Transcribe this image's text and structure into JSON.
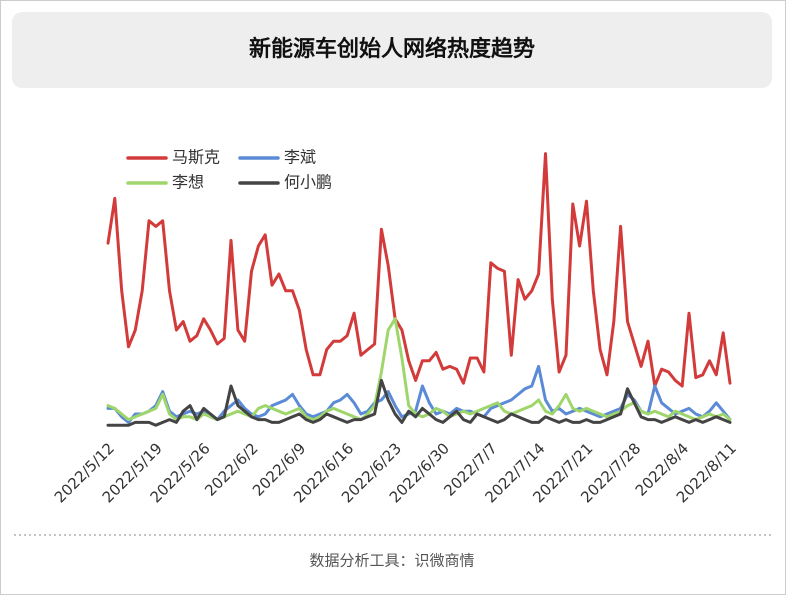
{
  "title": "新能源车创始人网络热度趋势",
  "footer": "数据分析工具：识微商情",
  "chart_data": {
    "type": "line",
    "categories": [
      "2022/5/12",
      null,
      null,
      null,
      null,
      null,
      null,
      "2022/5/19",
      null,
      null,
      null,
      null,
      null,
      null,
      "2022/5/26",
      null,
      null,
      null,
      null,
      null,
      null,
      "2022/6/2",
      null,
      null,
      null,
      null,
      null,
      null,
      "2022/6/9",
      null,
      null,
      null,
      null,
      null,
      null,
      "2022/6/16",
      null,
      null,
      null,
      null,
      null,
      null,
      "2022/6/23",
      null,
      null,
      null,
      null,
      null,
      null,
      "2022/6/30",
      null,
      null,
      null,
      null,
      null,
      null,
      "2022/7/7",
      null,
      null,
      null,
      null,
      null,
      null,
      "2022/7/14",
      null,
      null,
      null,
      null,
      null,
      null,
      "2022/7/21",
      null,
      null,
      null,
      null,
      null,
      null,
      "2022/7/28",
      null,
      null,
      null,
      null,
      null,
      null,
      "2022/8/4",
      null,
      null,
      null,
      null,
      null,
      null,
      "2022/8/11"
    ],
    "ylim": [
      0,
      100
    ],
    "series": [
      {
        "name": "马斯克",
        "color": "#d33b3b",
        "values": [
          66,
          82,
          49,
          29,
          35,
          49,
          74,
          72,
          74,
          49,
          35,
          38,
          31,
          33,
          39,
          35,
          30,
          32,
          67,
          35,
          31,
          56,
          65,
          69,
          51,
          55,
          49,
          49,
          42,
          28,
          19,
          19,
          28,
          31,
          31,
          33,
          41,
          26,
          28,
          30,
          71,
          58,
          39,
          35,
          24,
          17,
          24,
          24,
          27,
          21,
          22,
          21,
          16,
          25,
          25,
          20,
          59,
          57,
          56,
          26,
          53,
          46,
          49,
          55,
          98,
          46,
          20,
          26,
          80,
          65,
          81,
          49,
          28,
          19,
          38,
          72,
          38,
          30,
          22,
          31,
          15,
          21,
          20,
          17,
          15,
          41,
          18,
          19,
          24,
          19,
          34,
          16
        ]
      },
      {
        "name": "李斌",
        "color": "#5b8bd6",
        "values": [
          7,
          7,
          4,
          2,
          5,
          5,
          6,
          8,
          13,
          6,
          4,
          5,
          6,
          5,
          6,
          4,
          3,
          6,
          8,
          10,
          7,
          5,
          4,
          5,
          8,
          9,
          10,
          12,
          8,
          5,
          4,
          5,
          6,
          9,
          10,
          12,
          9,
          5,
          6,
          9,
          10,
          13,
          8,
          4,
          5,
          6,
          15,
          9,
          5,
          6,
          5,
          7,
          6,
          6,
          5,
          4,
          7,
          8,
          9,
          10,
          12,
          14,
          15,
          22,
          10,
          6,
          7,
          5,
          6,
          7,
          6,
          5,
          4,
          5,
          6,
          7,
          12,
          10,
          6,
          5,
          15,
          9,
          7,
          5,
          6,
          7,
          5,
          4,
          6,
          9,
          6,
          3
        ]
      },
      {
        "name": "李想",
        "color": "#9fd66b",
        "values": [
          8,
          7,
          5,
          3,
          4,
          5,
          6,
          7,
          12,
          5,
          3,
          4,
          4,
          3,
          5,
          4,
          3,
          4,
          5,
          6,
          5,
          4,
          7,
          8,
          7,
          6,
          5,
          6,
          7,
          4,
          3,
          4,
          6,
          7,
          6,
          5,
          4,
          3,
          5,
          8,
          20,
          35,
          39,
          25,
          8,
          5,
          4,
          5,
          7,
          6,
          4,
          5,
          6,
          5,
          6,
          7,
          8,
          9,
          6,
          5,
          6,
          7,
          8,
          10,
          6,
          5,
          8,
          12,
          7,
          6,
          7,
          6,
          5,
          4,
          5,
          6,
          8,
          9,
          6,
          5,
          6,
          5,
          4,
          6,
          5,
          4,
          3,
          4,
          5,
          4,
          5,
          3
        ]
      },
      {
        "name": "何小鹏",
        "color": "#444444",
        "values": [
          1,
          1,
          1,
          1,
          2,
          2,
          2,
          1,
          2,
          3,
          2,
          6,
          8,
          3,
          7,
          5,
          3,
          4,
          15,
          8,
          6,
          4,
          3,
          3,
          2,
          2,
          3,
          4,
          5,
          3,
          2,
          3,
          5,
          4,
          3,
          2,
          3,
          3,
          4,
          5,
          17,
          10,
          5,
          2,
          6,
          4,
          7,
          5,
          3,
          2,
          4,
          6,
          3,
          2,
          5,
          4,
          3,
          2,
          3,
          5,
          4,
          3,
          2,
          2,
          4,
          3,
          2,
          3,
          2,
          2,
          3,
          2,
          2,
          3,
          4,
          5,
          14,
          9,
          4,
          3,
          3,
          2,
          3,
          4,
          3,
          2,
          3,
          2,
          3,
          4,
          3,
          2
        ]
      }
    ]
  }
}
